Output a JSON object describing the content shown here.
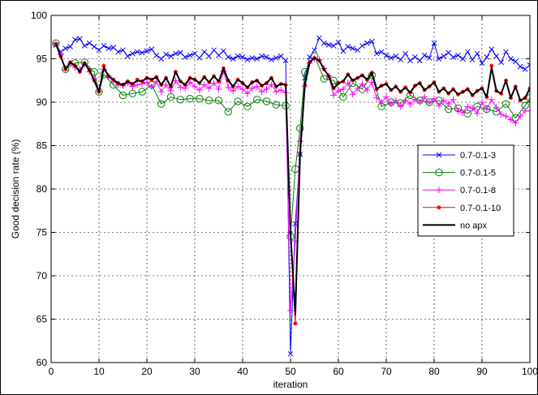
{
  "chart_data": {
    "type": "line",
    "title": "",
    "xlabel": "iteration",
    "ylabel": "Good decision rate (%)",
    "xlim": [
      0,
      100
    ],
    "ylim": [
      60,
      100
    ],
    "xticks": [
      0,
      10,
      20,
      30,
      40,
      50,
      60,
      70,
      80,
      90,
      100
    ],
    "yticks": [
      60,
      65,
      70,
      75,
      80,
      85,
      90,
      95,
      100
    ],
    "grid": true,
    "legend_position": "right",
    "series": [
      {
        "name": "0.7-0.1-3",
        "color": "#0000ff",
        "marker": "x",
        "x": [
          1,
          2,
          3,
          4,
          5,
          6,
          7,
          8,
          9,
          10,
          11,
          12,
          13,
          14,
          15,
          16,
          17,
          18,
          19,
          20,
          21,
          22,
          23,
          24,
          25,
          26,
          27,
          28,
          29,
          30,
          31,
          32,
          33,
          34,
          35,
          36,
          37,
          38,
          39,
          40,
          41,
          42,
          43,
          44,
          45,
          46,
          47,
          48,
          49,
          50,
          51,
          52,
          53,
          54,
          55,
          56,
          57,
          58,
          59,
          60,
          61,
          62,
          63,
          64,
          65,
          66,
          67,
          68,
          69,
          70,
          71,
          72,
          73,
          74,
          75,
          76,
          77,
          78,
          79,
          80,
          81,
          82,
          83,
          84,
          85,
          86,
          87,
          88,
          89,
          90,
          91,
          92,
          93,
          94,
          95,
          96,
          97,
          98,
          99,
          100
        ],
        "values": [
          96.6,
          95.8,
          96.2,
          96.4,
          97.2,
          97.3,
          96.5,
          96.8,
          96.4,
          96.0,
          96.5,
          96.2,
          96.3,
          95.8,
          96.0,
          95.3,
          95.6,
          95.8,
          95.7,
          95.9,
          96.1,
          95.4,
          95.0,
          95.5,
          95.3,
          95.6,
          95.7,
          95.2,
          95.4,
          95.6,
          95.1,
          95.8,
          95.3,
          96.0,
          95.4,
          95.9,
          95.2,
          95.0,
          95.3,
          95.2,
          94.9,
          95.1,
          95.0,
          95.3,
          95.2,
          94.9,
          95.1,
          95.3,
          94.8,
          61.0,
          76.0,
          84.0,
          92.8,
          95.2,
          96.0,
          97.4,
          96.8,
          96.6,
          96.5,
          96.9,
          95.9,
          96.4,
          96.2,
          96.0,
          96.5,
          96.8,
          97.0,
          95.6,
          95.8,
          95.4,
          95.1,
          95.3,
          94.9,
          95.6,
          94.8,
          95.2,
          94.8,
          95.4,
          95.1,
          96.8,
          95.0,
          95.3,
          95.7,
          95.2,
          95.4,
          95.0,
          95.8,
          94.9,
          95.6,
          94.5,
          95.2,
          96.1,
          95.3,
          94.6,
          95.8,
          95.0,
          94.7,
          94.1,
          93.8,
          94.3
        ]
      },
      {
        "name": "0.7-0.1-5",
        "color": "#008000",
        "marker": "o",
        "x": [
          1,
          3,
          5,
          7,
          9,
          10,
          11,
          13,
          15,
          17,
          19,
          21,
          23,
          25,
          27,
          29,
          31,
          33,
          35,
          37,
          39,
          41,
          43,
          45,
          47,
          49,
          50,
          51,
          52,
          53,
          55,
          57,
          59,
          61,
          63,
          65,
          67,
          69,
          71,
          73,
          75,
          77,
          79,
          81,
          83,
          85,
          87,
          89,
          91,
          93,
          95,
          97,
          99,
          100
        ],
        "values": [
          96.8,
          93.8,
          94.5,
          94.6,
          93.5,
          91.2,
          93.2,
          92.0,
          90.8,
          91.0,
          91.2,
          92.0,
          89.8,
          90.6,
          90.3,
          90.4,
          90.4,
          90.2,
          90.2,
          88.9,
          90.1,
          89.5,
          90.3,
          90.1,
          89.7,
          89.6,
          74.5,
          82.3,
          87.0,
          93.5,
          95.3,
          92.7,
          92.5,
          90.6,
          92.2,
          91.5,
          93.1,
          89.5,
          90.0,
          89.9,
          90.8,
          90.2,
          90.0,
          90.2,
          89.2,
          89.3,
          88.7,
          89.5,
          89.2,
          88.9,
          89.8,
          88.2,
          89.6,
          90.5
        ]
      },
      {
        "name": "0.7-0.1-8",
        "color": "#ff00ff",
        "marker": "+",
        "x": [
          1,
          2,
          3,
          4,
          5,
          6,
          7,
          8,
          9,
          10,
          11,
          12,
          13,
          14,
          15,
          16,
          17,
          18,
          19,
          20,
          21,
          22,
          23,
          24,
          25,
          26,
          27,
          28,
          29,
          30,
          31,
          32,
          33,
          34,
          35,
          36,
          37,
          38,
          39,
          40,
          41,
          42,
          43,
          44,
          45,
          46,
          47,
          48,
          49,
          50,
          51,
          52,
          53,
          54,
          55,
          56,
          57,
          58,
          59,
          60,
          61,
          62,
          63,
          64,
          65,
          66,
          67,
          68,
          69,
          70,
          71,
          72,
          73,
          74,
          75,
          76,
          77,
          78,
          79,
          80,
          81,
          82,
          83,
          84,
          85,
          86,
          87,
          88,
          89,
          90,
          91,
          92,
          93,
          94,
          95,
          96,
          97,
          98,
          99,
          100
        ],
        "values": [
          96.7,
          95.5,
          93.7,
          94.5,
          94.0,
          93.8,
          94.4,
          93.5,
          92.7,
          91.3,
          93.8,
          93.0,
          92.4,
          92.0,
          91.9,
          92.2,
          91.8,
          92.0,
          92.1,
          92.3,
          91.8,
          92.4,
          91.2,
          92.0,
          91.3,
          92.5,
          91.7,
          91.6,
          92.3,
          91.8,
          91.4,
          92.0,
          91.6,
          92.2,
          91.5,
          93.6,
          91.7,
          91.3,
          91.8,
          91.5,
          91.0,
          91.6,
          91.8,
          91.2,
          91.5,
          92.0,
          91.2,
          91.4,
          91.1,
          66.0,
          74.0,
          85.5,
          91.8,
          94.5,
          95.0,
          94.9,
          93.9,
          93.0,
          90.8,
          91.3,
          91.5,
          92.2,
          90.9,
          91.6,
          92.1,
          91.4,
          92.3,
          90.5,
          90.0,
          90.6,
          89.8,
          90.2,
          89.5,
          90.2,
          89.8,
          90.3,
          90.0,
          90.6,
          89.9,
          90.4,
          89.6,
          90.2,
          89.8,
          90.3,
          89.0,
          88.8,
          89.5,
          89.3,
          88.7,
          90.0,
          89.2,
          90.3,
          89.4,
          88.6,
          88.4,
          88.0,
          87.6,
          88.4,
          89.0,
          89.0
        ]
      },
      {
        "name": "0.7-0.1-10",
        "color": "#ff0000",
        "marker": "*",
        "x": [
          1,
          2,
          3,
          4,
          5,
          6,
          7,
          8,
          9,
          10,
          11,
          12,
          13,
          14,
          15,
          16,
          17,
          18,
          19,
          20,
          21,
          22,
          23,
          24,
          25,
          26,
          27,
          28,
          29,
          30,
          31,
          32,
          33,
          34,
          35,
          36,
          37,
          38,
          39,
          40,
          41,
          42,
          43,
          44,
          45,
          46,
          47,
          48,
          49,
          50,
          51,
          52,
          53,
          54,
          55,
          56,
          57,
          58,
          59,
          60,
          61,
          62,
          63,
          64,
          65,
          66,
          67,
          68,
          69,
          70,
          71,
          72,
          73,
          74,
          75,
          76,
          77,
          78,
          79,
          80,
          81,
          82,
          83,
          84,
          85,
          86,
          87,
          88,
          89,
          90,
          91,
          92,
          93,
          94,
          95,
          96,
          97,
          98,
          99,
          100
        ],
        "values": [
          96.7,
          95.3,
          93.8,
          94.6,
          94.2,
          93.5,
          94.5,
          93.7,
          92.5,
          91.2,
          94.2,
          93.0,
          92.6,
          92.2,
          92.0,
          92.4,
          92.1,
          92.6,
          92.4,
          92.8,
          92.6,
          92.9,
          92.0,
          92.8,
          91.8,
          93.5,
          92.4,
          92.0,
          92.8,
          92.6,
          92.2,
          92.9,
          92.3,
          93.0,
          92.4,
          93.9,
          92.5,
          91.8,
          92.6,
          92.2,
          91.7,
          92.3,
          92.5,
          91.9,
          92.2,
          92.8,
          91.8,
          92.1,
          92.0,
          75.0,
          64.5,
          84.0,
          92.0,
          94.6,
          95.1,
          94.8,
          93.8,
          93.0,
          91.6,
          92.2,
          92.4,
          93.2,
          92.5,
          92.8,
          93.1,
          92.6,
          93.4,
          91.5,
          91.9,
          92.1,
          91.4,
          91.8,
          91.2,
          91.7,
          91.1,
          91.9,
          92.2,
          91.4,
          91.8,
          92.3,
          91.2,
          91.6,
          91.0,
          91.5,
          90.9,
          91.2,
          91.5,
          90.8,
          91.3,
          91.6,
          90.6,
          94.2,
          91.3,
          91.0,
          92.5,
          90.5,
          91.8,
          90.2,
          90.5,
          91.6
        ]
      },
      {
        "name": "no apx",
        "color": "#000000",
        "marker": "none",
        "x": [
          1,
          2,
          3,
          4,
          5,
          6,
          7,
          8,
          9,
          10,
          11,
          12,
          13,
          14,
          15,
          16,
          17,
          18,
          19,
          20,
          21,
          22,
          23,
          24,
          25,
          26,
          27,
          28,
          29,
          30,
          31,
          32,
          33,
          34,
          35,
          36,
          37,
          38,
          39,
          40,
          41,
          42,
          43,
          44,
          45,
          46,
          47,
          48,
          49,
          50,
          51,
          52,
          53,
          54,
          55,
          56,
          57,
          58,
          59,
          60,
          61,
          62,
          63,
          64,
          65,
          66,
          67,
          68,
          69,
          70,
          71,
          72,
          73,
          74,
          75,
          76,
          77,
          78,
          79,
          80,
          81,
          82,
          83,
          84,
          85,
          86,
          87,
          88,
          89,
          90,
          91,
          92,
          93,
          94,
          95,
          96,
          97,
          98,
          99,
          100
        ],
        "values": [
          96.7,
          95.3,
          93.8,
          94.6,
          94.2,
          93.5,
          94.5,
          93.7,
          92.5,
          91.2,
          94.0,
          93.0,
          92.6,
          92.2,
          92.0,
          92.4,
          92.1,
          92.5,
          92.4,
          92.8,
          92.6,
          92.9,
          92.0,
          92.8,
          91.8,
          93.5,
          92.4,
          92.0,
          92.8,
          92.6,
          92.2,
          92.9,
          92.3,
          93.0,
          92.4,
          93.9,
          92.5,
          91.8,
          92.6,
          92.2,
          91.7,
          92.3,
          92.5,
          91.9,
          92.2,
          92.8,
          91.8,
          92.1,
          92.0,
          75.0,
          65.5,
          84.0,
          92.0,
          94.6,
          95.1,
          94.8,
          93.8,
          93.0,
          91.6,
          92.2,
          92.4,
          93.2,
          92.5,
          92.8,
          93.1,
          92.6,
          93.4,
          91.5,
          91.9,
          92.1,
          91.4,
          91.8,
          91.2,
          91.7,
          91.1,
          91.9,
          92.2,
          91.4,
          91.8,
          92.3,
          91.2,
          91.6,
          91.0,
          91.5,
          90.9,
          91.2,
          91.5,
          90.8,
          91.3,
          91.6,
          90.6,
          94.0,
          91.3,
          91.0,
          92.5,
          90.5,
          91.8,
          90.2,
          90.5,
          91.6
        ]
      }
    ]
  }
}
